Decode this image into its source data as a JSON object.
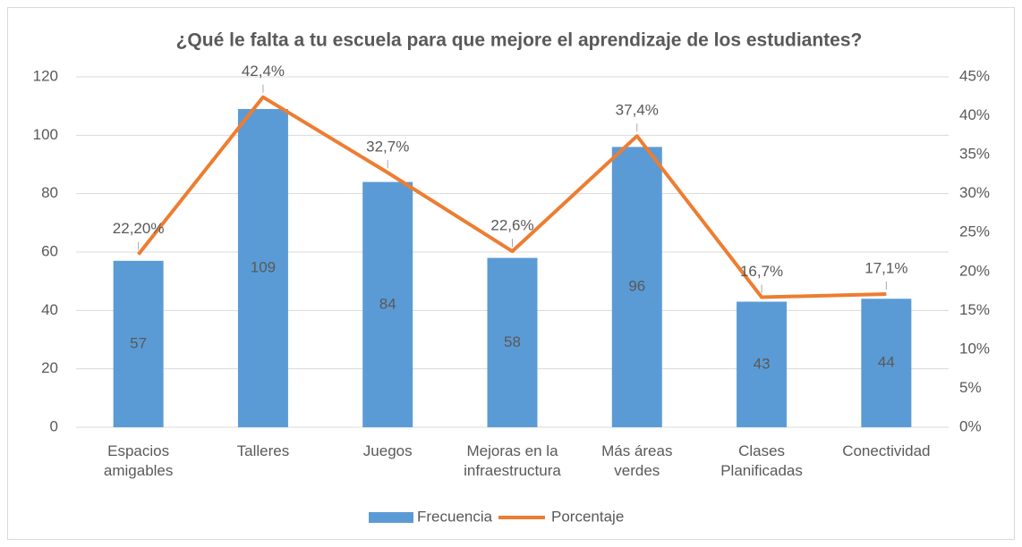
{
  "chart_data": {
    "type": "bar",
    "title": "¿Qué le falta a tu escuela para que mejore el aprendizaje de los estudiantes?",
    "categories": [
      "Espacios amigables",
      "Talleres",
      "Juegos",
      "Mejoras en la infraestructura",
      "Más áreas verdes",
      "Clases Planificadas",
      "Conectividad"
    ],
    "series": [
      {
        "name": "Frecuencia",
        "type": "bar",
        "color": "#5b9bd5",
        "values": [
          57,
          109,
          84,
          58,
          96,
          43,
          44
        ]
      },
      {
        "name": "Porcentaje",
        "type": "line",
        "axis": "y2",
        "color": "#ed7d31",
        "values": [
          22.2,
          42.4,
          32.7,
          22.6,
          37.4,
          16.7,
          17.1
        ],
        "value_labels": [
          "22,20%",
          "42,4%",
          "32,7%",
          "22,6%",
          "37,4%",
          "16,7%",
          "17,1%"
        ]
      }
    ],
    "ylim": [
      0,
      120
    ],
    "yticks": [
      0,
      20,
      40,
      60,
      80,
      100,
      120
    ],
    "y2lim": [
      0,
      45
    ],
    "y2ticks": [
      {
        "value": 0,
        "label": "0%"
      },
      {
        "value": 5,
        "label": "5%"
      },
      {
        "value": 10,
        "label": "10%"
      },
      {
        "value": 15,
        "label": "15%"
      },
      {
        "value": 20,
        "label": "20%"
      },
      {
        "value": 25,
        "label": "25%"
      },
      {
        "value": 30,
        "label": "30%"
      },
      {
        "value": 35,
        "label": "35%"
      },
      {
        "value": 40,
        "label": "40%"
      },
      {
        "value": 45,
        "label": "45%"
      }
    ],
    "grid": true,
    "legend": "bottom"
  }
}
